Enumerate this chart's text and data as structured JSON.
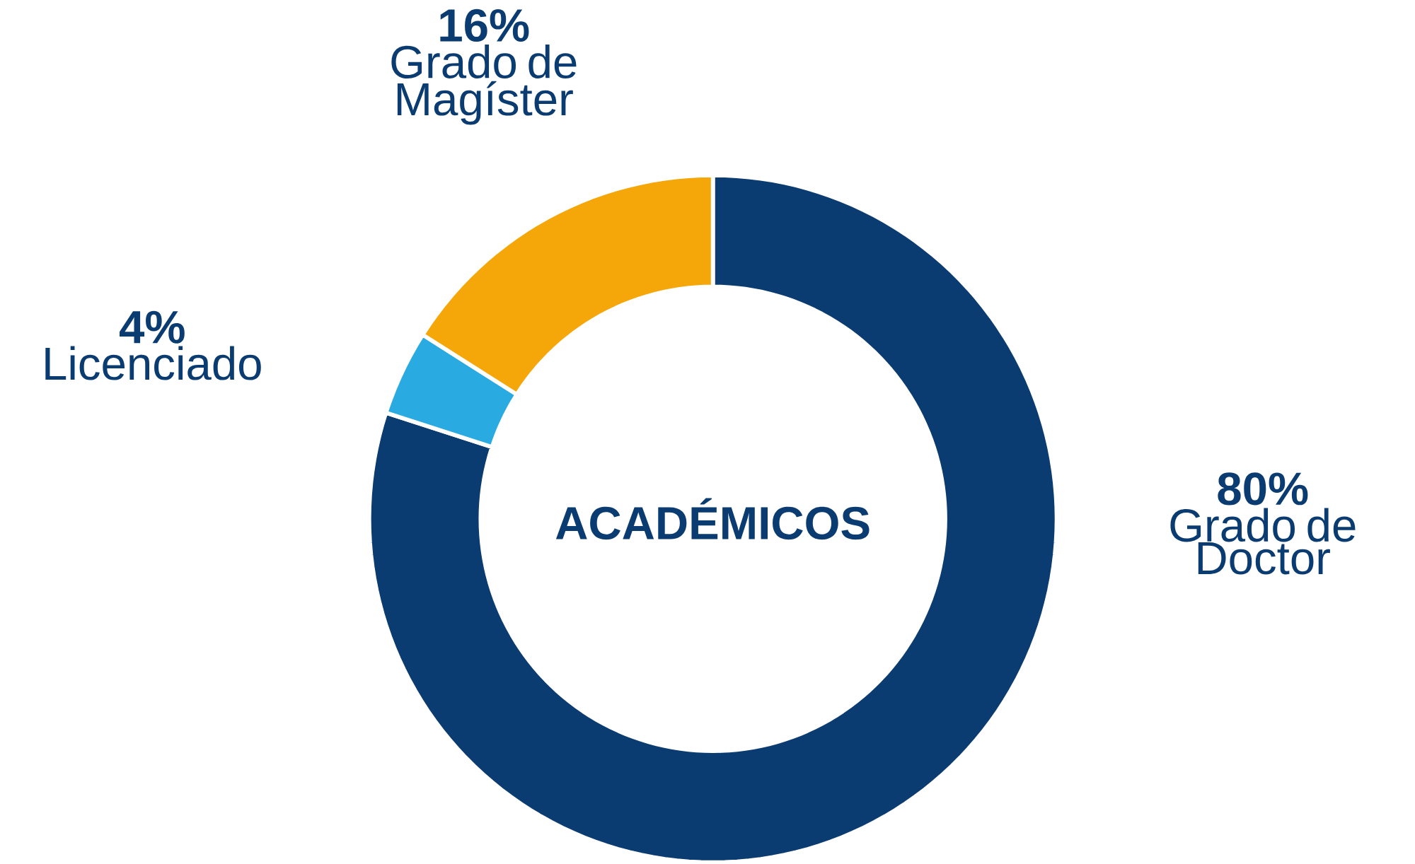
{
  "chart_data": {
    "type": "donut",
    "title": "ACADÉMICOS",
    "categories": [
      "Grado de Doctor",
      "Licenciado",
      "Grado de Magíster"
    ],
    "values": [
      80,
      4,
      16
    ],
    "colors": [
      "#0b3c71",
      "#29abe2",
      "#f5a70a"
    ],
    "data_labels": true,
    "value_labels": [
      "80%",
      "4%",
      "16%"
    ]
  }
}
